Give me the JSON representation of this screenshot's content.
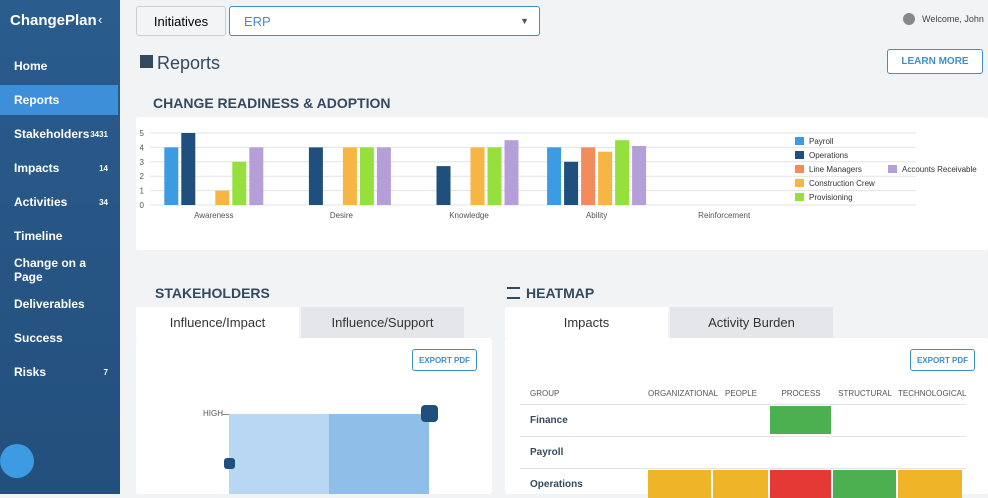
{
  "brand": "ChangePlan",
  "nav": [
    {
      "label": "Home"
    },
    {
      "label": "Reports",
      "active": true
    },
    {
      "label": "Stakeholders",
      "count": 3431
    },
    {
      "label": "Impacts",
      "count": 14
    },
    {
      "label": "Activities",
      "count": 34
    },
    {
      "label": "Timeline"
    },
    {
      "label": "Change on a Page"
    },
    {
      "label": "Deliverables"
    },
    {
      "label": "Success"
    },
    {
      "label": "Risks",
      "count": 7
    }
  ],
  "topbar": {
    "initiatives": "Initiatives",
    "selected": "ERP",
    "welcome": "Welcome, John"
  },
  "page": {
    "title": "Reports",
    "learn_more": "LEARN MORE"
  },
  "readiness": {
    "title": "CHANGE READINESS & ADOPTION"
  },
  "chart_data": {
    "type": "bar",
    "categories": [
      "Awareness",
      "Desire",
      "Knowledge",
      "Ability",
      "Reinforcement"
    ],
    "series": [
      {
        "name": "Payroll",
        "color": "#3d9be3",
        "values": [
          4,
          null,
          null,
          4,
          null
        ]
      },
      {
        "name": "Operations",
        "color": "#1f4f7c",
        "values": [
          5,
          4,
          2.7,
          3,
          null
        ]
      },
      {
        "name": "Line Managers",
        "color": "#f38b5c",
        "values": [
          null,
          null,
          null,
          4,
          null
        ]
      },
      {
        "name": "Construction Crew",
        "color": "#f7b643",
        "values": [
          1,
          4,
          4,
          3.7,
          null
        ]
      },
      {
        "name": "Provisioning",
        "color": "#95e03c",
        "values": [
          3,
          4,
          4,
          4.5,
          null
        ]
      },
      {
        "name": "Accounts Receivable",
        "color": "#b49fd8",
        "values": [
          4,
          4,
          4.5,
          4.1,
          null
        ]
      }
    ],
    "ylim": [
      0,
      5
    ],
    "yticks": [
      0,
      1,
      2,
      3,
      4,
      5
    ],
    "grid": true
  },
  "stakeholders": {
    "title": "STAKEHOLDERS",
    "tabs": [
      "Influence/Impact",
      "Influence/Support"
    ],
    "export": "EXPORT PDF",
    "axis_label": "HIGH"
  },
  "heatmap": {
    "title": "HEATMAP",
    "tabs": [
      "Impacts",
      "Activity Burden"
    ],
    "export": "EXPORT PDF",
    "columns": [
      "GROUP",
      "ORGANIZATIONAL",
      "PEOPLE",
      "PROCESS",
      "STRUCTURAL",
      "TECHNOLOGICAL"
    ],
    "rows": [
      {
        "group": "Finance",
        "cells": [
          null,
          null,
          "#4caf50",
          null,
          null
        ]
      },
      {
        "group": "Payroll",
        "cells": [
          null,
          null,
          null,
          null,
          null
        ]
      },
      {
        "group": "Operations",
        "cells": [
          "#f0b429",
          "#f0b429",
          "#e53935",
          "#4caf50",
          "#f0b429"
        ]
      }
    ]
  }
}
